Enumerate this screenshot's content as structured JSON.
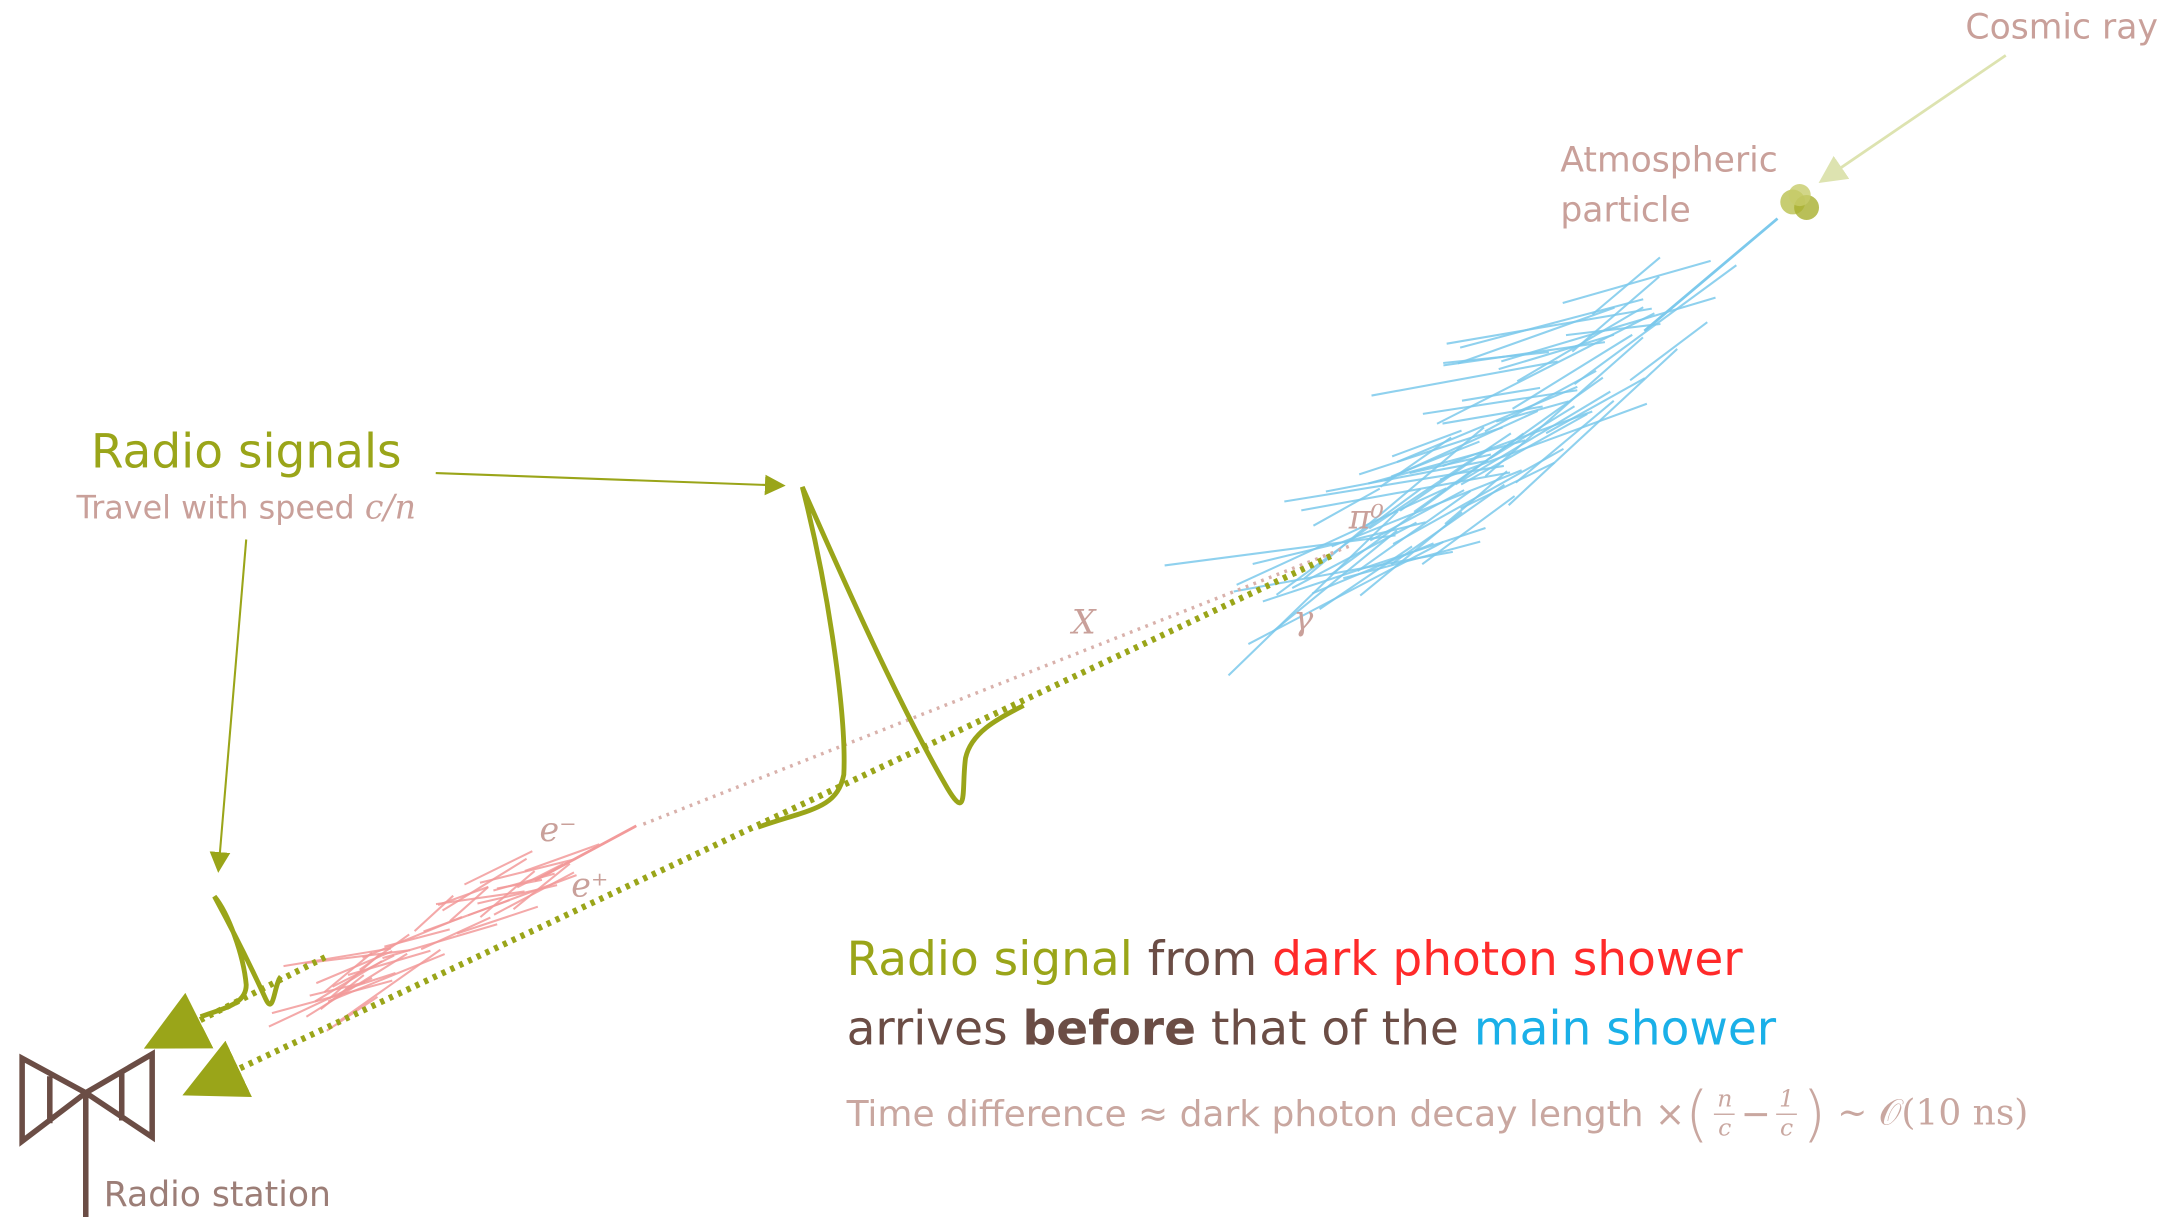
{
  "labels": {
    "cosmic_ray": "Cosmic ray",
    "atmospheric": [
      "Atmospheric",
      "particle"
    ],
    "pi0": "π⁰",
    "gamma": "γ",
    "x": "X",
    "e_minus": "e⁻",
    "e_plus": "e⁺",
    "radio_station": "Radio station"
  },
  "radio_signals": {
    "title": "Radio signals",
    "subtitle": "Travel with speed",
    "speed": "c/n"
  },
  "caption": {
    "line1": [
      "Radio signal",
      "from",
      "dark photon shower"
    ],
    "line2": [
      "arrives",
      "before",
      "that of the",
      "main shower"
    ],
    "formula": {
      "lhs": "Time difference ≈ dark photon decay length ×",
      "open": "(",
      "frac1": {
        "num": "n",
        "den": "c"
      },
      "minus": "−",
      "frac2": {
        "num": "1",
        "den": "c"
      },
      "close": ")",
      "rhs": "~ 𝒪(10 ns)"
    }
  }
}
